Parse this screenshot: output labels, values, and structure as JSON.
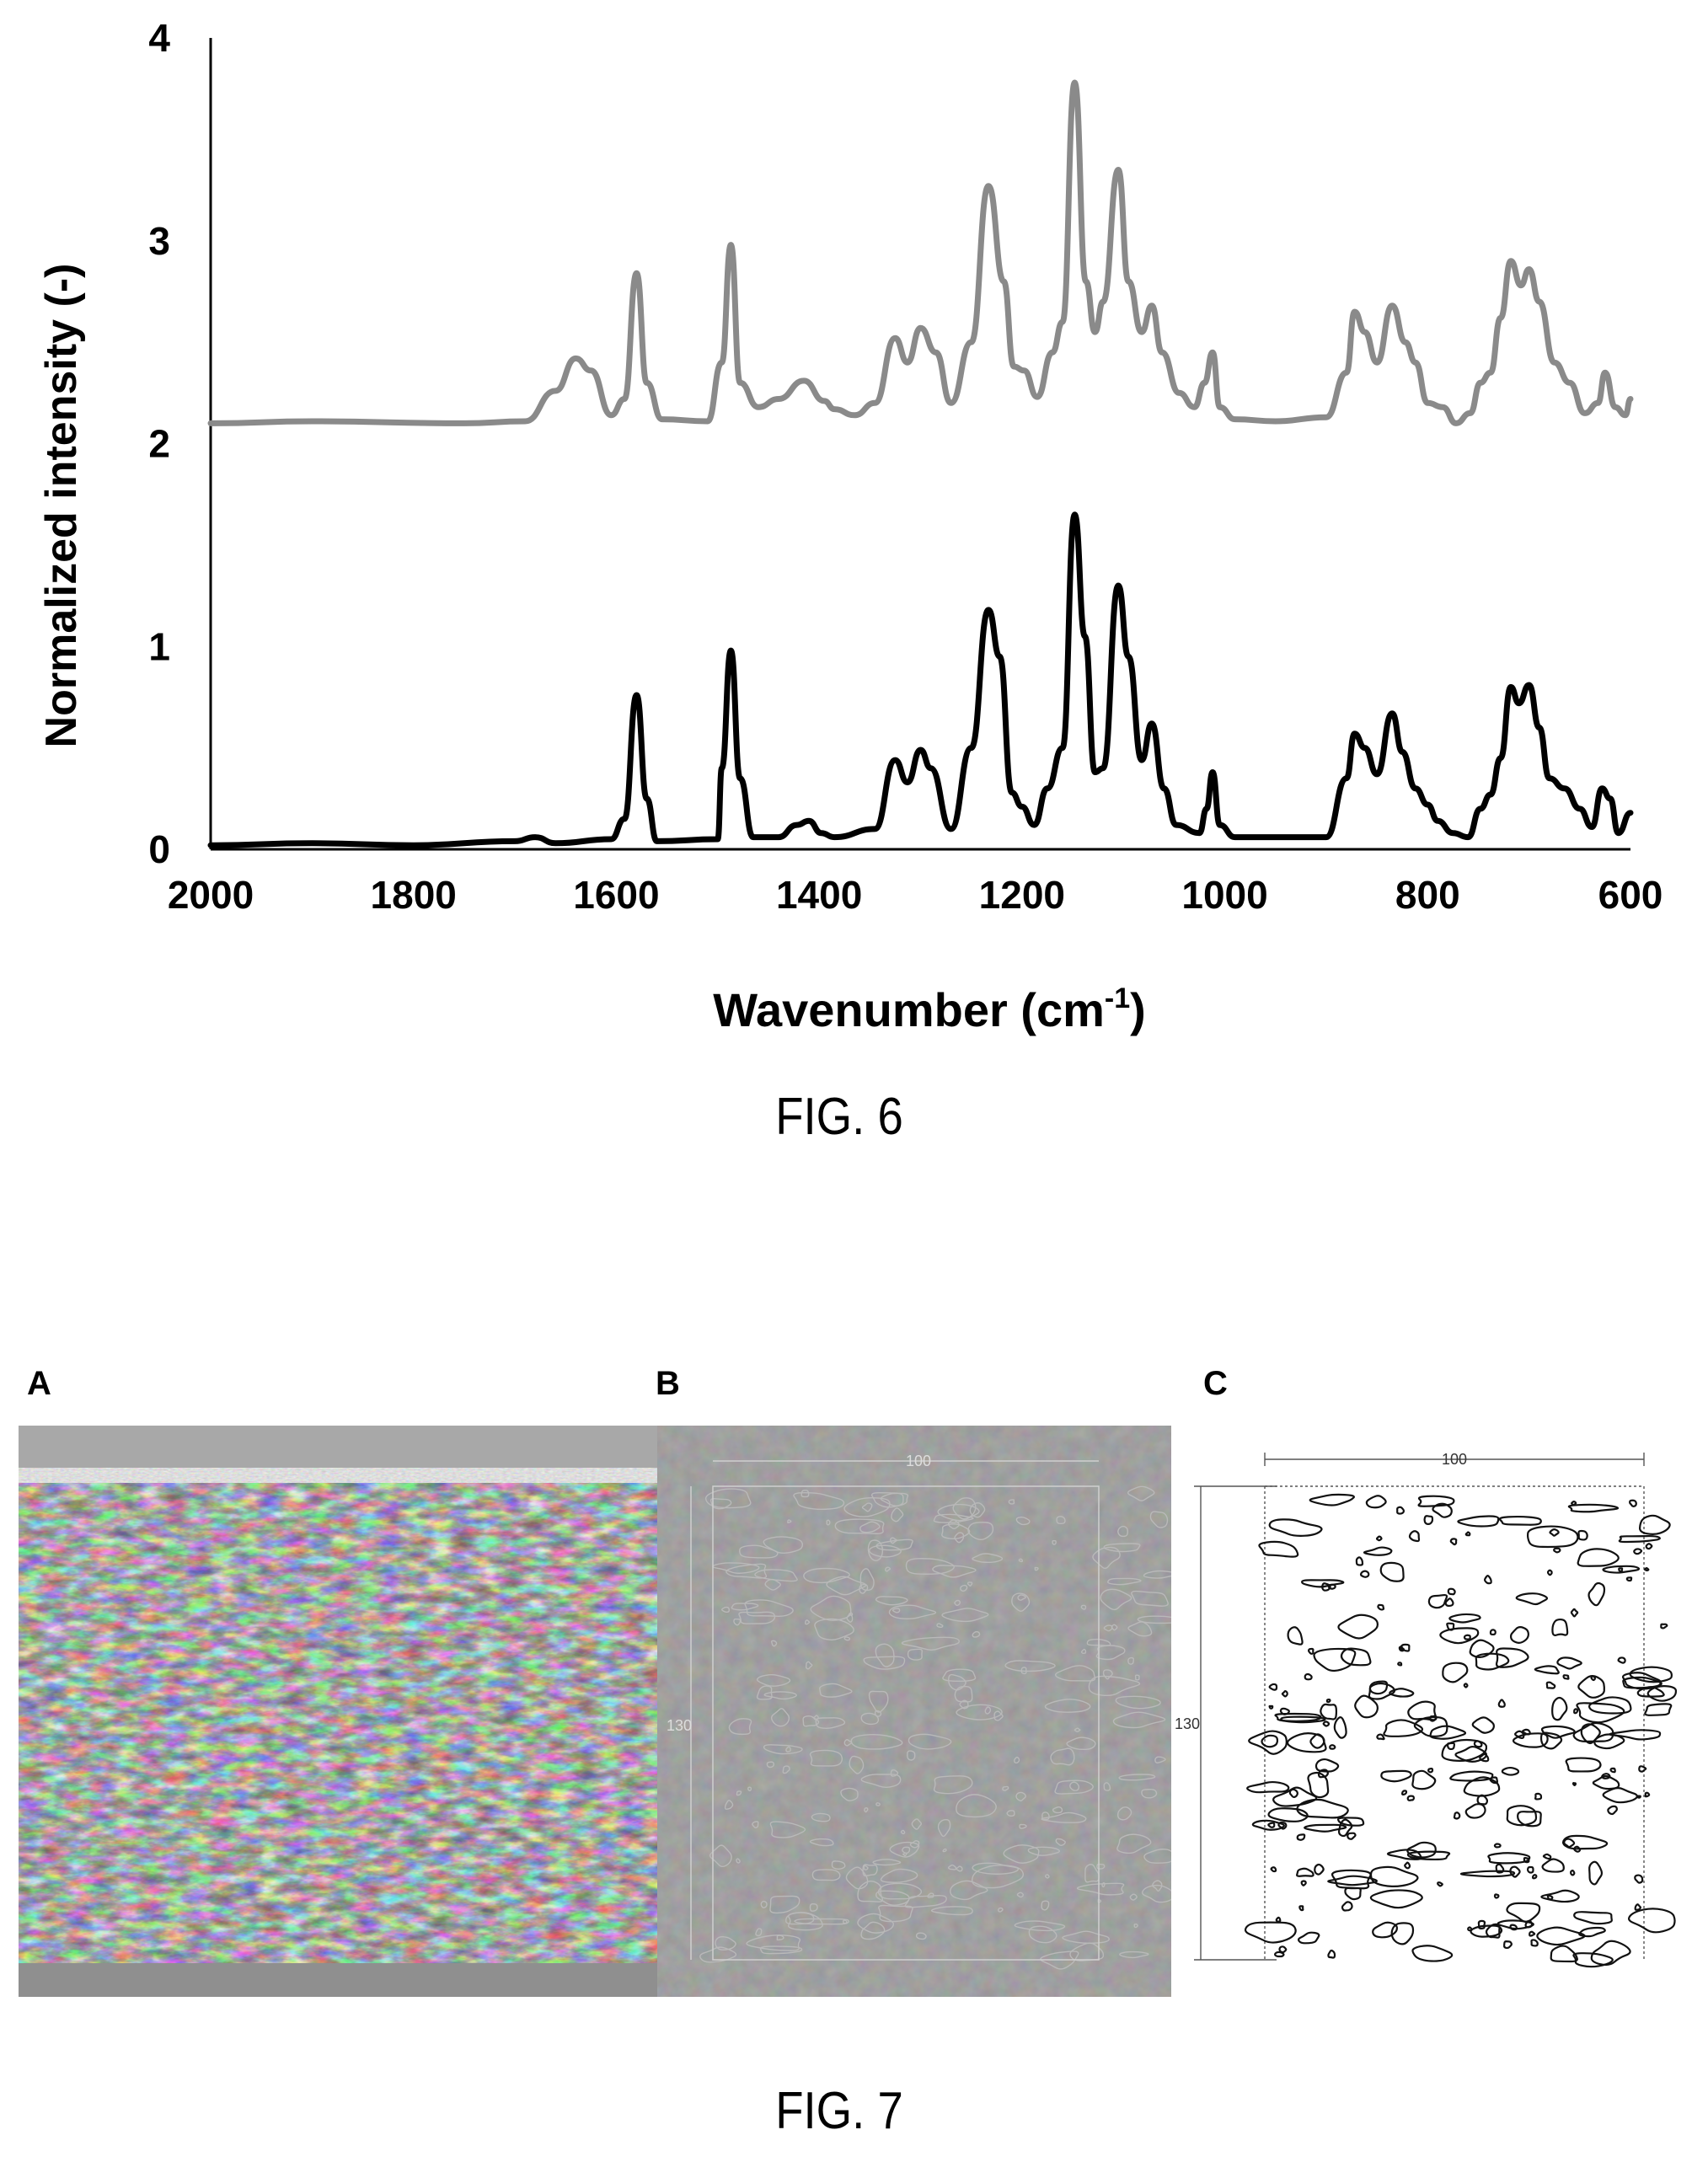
{
  "fig6": {
    "caption": "FIG. 6",
    "chart_data": {
      "type": "line",
      "title": "",
      "xlabel": "Wavenumber (cm-1)",
      "xlabel_main": "Wavenumber (cm",
      "xlabel_sup": "-1",
      "xlabel_close": ")",
      "ylabel": "Normalized intensity (-)",
      "xlim": [
        2000,
        600
      ],
      "x_reversed": true,
      "ylim": [
        0,
        4
      ],
      "x_ticks": [
        "2000",
        "1800",
        "1600",
        "1400",
        "1200",
        "1000",
        "800",
        "600"
      ],
      "y_ticks": [
        "0",
        "1",
        "2",
        "3",
        "4"
      ],
      "grid": false,
      "legend": "none",
      "series": [
        {
          "color": "#8a8a8a",
          "stroke": "gray",
          "points": [
            [
              2000,
              2.1
            ],
            [
              1900,
              2.11
            ],
            [
              1750,
              2.1
            ],
            [
              1690,
              2.11
            ],
            [
              1660,
              2.26
            ],
            [
              1640,
              2.42
            ],
            [
              1625,
              2.36
            ],
            [
              1605,
              2.14
            ],
            [
              1592,
              2.22
            ],
            [
              1580,
              2.84
            ],
            [
              1570,
              2.3
            ],
            [
              1555,
              2.12
            ],
            [
              1510,
              2.11
            ],
            [
              1496,
              2.4
            ],
            [
              1487,
              2.98
            ],
            [
              1478,
              2.3
            ],
            [
              1460,
              2.18
            ],
            [
              1440,
              2.22
            ],
            [
              1415,
              2.31
            ],
            [
              1395,
              2.21
            ],
            [
              1385,
              2.17
            ],
            [
              1365,
              2.14
            ],
            [
              1345,
              2.2
            ],
            [
              1325,
              2.52
            ],
            [
              1313,
              2.4
            ],
            [
              1300,
              2.57
            ],
            [
              1285,
              2.45
            ],
            [
              1270,
              2.2
            ],
            [
              1250,
              2.5
            ],
            [
              1233,
              3.27
            ],
            [
              1218,
              2.8
            ],
            [
              1208,
              2.38
            ],
            [
              1198,
              2.36
            ],
            [
              1185,
              2.23
            ],
            [
              1170,
              2.45
            ],
            [
              1160,
              2.6
            ],
            [
              1148,
              3.78
            ],
            [
              1137,
              2.8
            ],
            [
              1128,
              2.55
            ],
            [
              1120,
              2.7
            ],
            [
              1105,
              3.35
            ],
            [
              1095,
              2.8
            ],
            [
              1082,
              2.55
            ],
            [
              1072,
              2.68
            ],
            [
              1062,
              2.45
            ],
            [
              1045,
              2.25
            ],
            [
              1030,
              2.18
            ],
            [
              1020,
              2.3
            ],
            [
              1012,
              2.45
            ],
            [
              1005,
              2.18
            ],
            [
              990,
              2.12
            ],
            [
              950,
              2.11
            ],
            [
              900,
              2.13
            ],
            [
              880,
              2.35
            ],
            [
              872,
              2.65
            ],
            [
              862,
              2.55
            ],
            [
              850,
              2.4
            ],
            [
              835,
              2.68
            ],
            [
              822,
              2.5
            ],
            [
              812,
              2.4
            ],
            [
              800,
              2.2
            ],
            [
              785,
              2.18
            ],
            [
              772,
              2.1
            ],
            [
              758,
              2.15
            ],
            [
              748,
              2.3
            ],
            [
              738,
              2.35
            ],
            [
              728,
              2.62
            ],
            [
              718,
              2.9
            ],
            [
              708,
              2.78
            ],
            [
              700,
              2.86
            ],
            [
              690,
              2.7
            ],
            [
              675,
              2.4
            ],
            [
              660,
              2.3
            ],
            [
              645,
              2.15
            ],
            [
              632,
              2.2
            ],
            [
              625,
              2.35
            ],
            [
              615,
              2.18
            ],
            [
              605,
              2.14
            ],
            [
              600,
              2.22
            ]
          ]
        },
        {
          "color": "#000000",
          "stroke": "black",
          "points": [
            [
              2000,
              0.02
            ],
            [
              1900,
              0.03
            ],
            [
              1800,
              0.02
            ],
            [
              1700,
              0.04
            ],
            [
              1680,
              0.06
            ],
            [
              1660,
              0.03
            ],
            [
              1605,
              0.05
            ],
            [
              1592,
              0.15
            ],
            [
              1580,
              0.76
            ],
            [
              1570,
              0.25
            ],
            [
              1560,
              0.04
            ],
            [
              1500,
              0.05
            ],
            [
              1496,
              0.4
            ],
            [
              1487,
              0.98
            ],
            [
              1478,
              0.35
            ],
            [
              1465,
              0.06
            ],
            [
              1440,
              0.06
            ],
            [
              1422,
              0.12
            ],
            [
              1410,
              0.14
            ],
            [
              1398,
              0.08
            ],
            [
              1385,
              0.06
            ],
            [
              1345,
              0.1
            ],
            [
              1325,
              0.44
            ],
            [
              1313,
              0.33
            ],
            [
              1300,
              0.49
            ],
            [
              1290,
              0.4
            ],
            [
              1270,
              0.1
            ],
            [
              1250,
              0.5
            ],
            [
              1233,
              1.18
            ],
            [
              1222,
              0.95
            ],
            [
              1210,
              0.28
            ],
            [
              1200,
              0.21
            ],
            [
              1188,
              0.12
            ],
            [
              1175,
              0.3
            ],
            [
              1160,
              0.5
            ],
            [
              1148,
              1.65
            ],
            [
              1138,
              1.05
            ],
            [
              1128,
              0.38
            ],
            [
              1120,
              0.4
            ],
            [
              1105,
              1.3
            ],
            [
              1095,
              0.95
            ],
            [
              1082,
              0.44
            ],
            [
              1072,
              0.62
            ],
            [
              1060,
              0.3
            ],
            [
              1048,
              0.12
            ],
            [
              1025,
              0.08
            ],
            [
              1018,
              0.2
            ],
            [
              1012,
              0.38
            ],
            [
              1005,
              0.12
            ],
            [
              990,
              0.06
            ],
            [
              960,
              0.06
            ],
            [
              900,
              0.06
            ],
            [
              880,
              0.35
            ],
            [
              872,
              0.57
            ],
            [
              862,
              0.5
            ],
            [
              850,
              0.37
            ],
            [
              835,
              0.67
            ],
            [
              825,
              0.48
            ],
            [
              812,
              0.3
            ],
            [
              800,
              0.22
            ],
            [
              790,
              0.14
            ],
            [
              775,
              0.08
            ],
            [
              760,
              0.06
            ],
            [
              748,
              0.2
            ],
            [
              738,
              0.27
            ],
            [
              728,
              0.45
            ],
            [
              718,
              0.8
            ],
            [
              710,
              0.72
            ],
            [
              700,
              0.81
            ],
            [
              690,
              0.6
            ],
            [
              680,
              0.35
            ],
            [
              665,
              0.3
            ],
            [
              650,
              0.2
            ],
            [
              638,
              0.11
            ],
            [
              628,
              0.3
            ],
            [
              620,
              0.25
            ],
            [
              612,
              0.08
            ],
            [
              600,
              0.18
            ]
          ]
        }
      ]
    }
  },
  "fig7": {
    "caption": "FIG. 7",
    "panels": {
      "a": {
        "letter": "A"
      },
      "b": {
        "letter": "B",
        "dim_width": "100",
        "dim_height": "130"
      },
      "c": {
        "letter": "C",
        "dim_width": "100",
        "dim_height": "130"
      }
    }
  }
}
